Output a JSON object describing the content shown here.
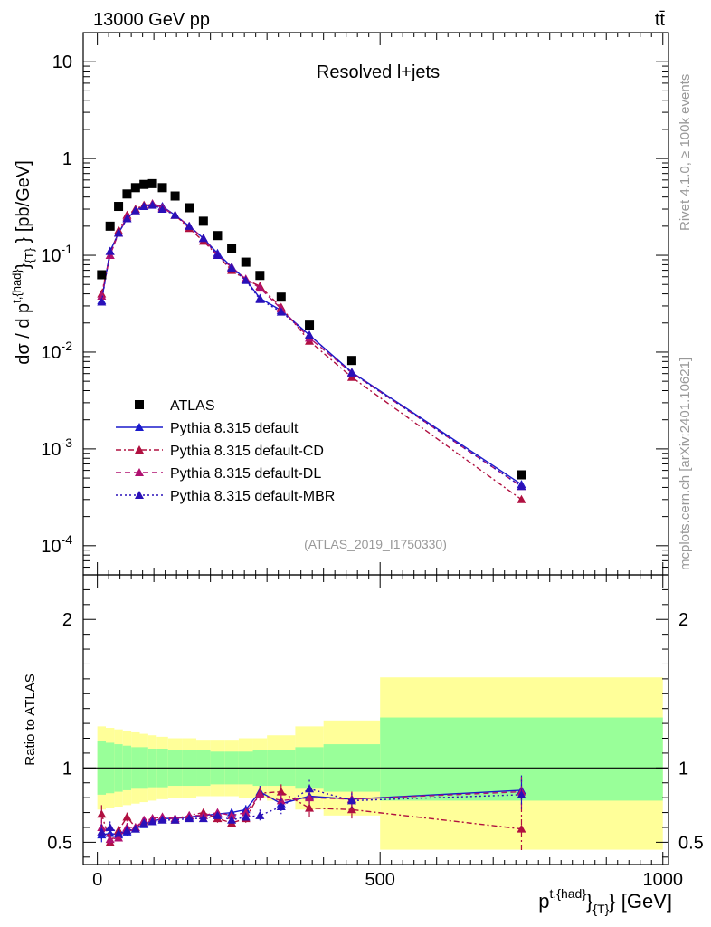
{
  "header": {
    "beam": "13000 GeV pp",
    "process": "tt̄",
    "title": "Resolved l+jets",
    "analysis": "(ATLAS_2019_I1750330)",
    "rivet": "Rivet 4.1.0, ≥ 100k events",
    "source": "mcplots.cern.ch [arXiv:2401.10621]"
  },
  "colors": {
    "atlas": "#000000",
    "default": "#1a1acc",
    "cd": "#b01040",
    "dl": "#b01070",
    "mbr": "#2a10b8",
    "band_stat": "#99ff99",
    "band_total": "#ffff99"
  },
  "chart_data": {
    "type": "scatter",
    "top": {
      "ylabel": "dσ / d p^{t,{had}}_{T} [pb/GeV]",
      "yscale": "log",
      "ylim": [
        5e-05,
        20
      ],
      "yticks": [
        {
          "v": 0.0001,
          "base": "10",
          "exp": "-4"
        },
        {
          "v": 0.001,
          "base": "10",
          "exp": "-3"
        },
        {
          "v": 0.01,
          "base": "10",
          "exp": "-2"
        },
        {
          "v": 0.1,
          "base": "10",
          "exp": "-1"
        },
        {
          "v": 1,
          "base": "1",
          "exp": ""
        },
        {
          "v": 10,
          "base": "10",
          "exp": ""
        }
      ]
    },
    "bottom": {
      "ylabel": "Ratio to ATLAS",
      "ylim": [
        0.35,
        2.3
      ],
      "ytick_labels": [
        "0.5",
        "1",
        "2"
      ],
      "yticks": [
        0.5,
        1,
        2
      ]
    },
    "xlabel": "p^{t,{had}}_{T} [GeV]",
    "xlim": [
      -25,
      1010
    ],
    "xtick_labels": [
      "0",
      "500",
      "1000"
    ],
    "xticks": [
      0,
      500,
      1000
    ],
    "bins": [
      [
        0,
        15
      ],
      [
        15,
        30
      ],
      [
        30,
        45
      ],
      [
        45,
        60
      ],
      [
        60,
        75
      ],
      [
        75,
        90
      ],
      [
        90,
        105
      ],
      [
        105,
        125
      ],
      [
        125,
        150
      ],
      [
        150,
        175
      ],
      [
        175,
        200
      ],
      [
        200,
        225
      ],
      [
        225,
        250
      ],
      [
        250,
        275
      ],
      [
        275,
        300
      ],
      [
        300,
        350
      ],
      [
        350,
        400
      ],
      [
        400,
        500
      ],
      [
        500,
        1000
      ]
    ],
    "x": [
      7.5,
      22.5,
      37.5,
      52.5,
      67.5,
      82.5,
      97.5,
      115,
      137.5,
      162.5,
      187.5,
      212.5,
      237.5,
      262.5,
      287.5,
      325,
      375,
      450,
      750
    ],
    "band_stat": [
      [
        0.82,
        1.18
      ],
      [
        0.83,
        1.17
      ],
      [
        0.84,
        1.16
      ],
      [
        0.85,
        1.15
      ],
      [
        0.86,
        1.14
      ],
      [
        0.86,
        1.14
      ],
      [
        0.87,
        1.13
      ],
      [
        0.87,
        1.13
      ],
      [
        0.88,
        1.12
      ],
      [
        0.88,
        1.12
      ],
      [
        0.88,
        1.12
      ],
      [
        0.89,
        1.11
      ],
      [
        0.89,
        1.11
      ],
      [
        0.89,
        1.11
      ],
      [
        0.88,
        1.12
      ],
      [
        0.88,
        1.12
      ],
      [
        0.86,
        1.14
      ],
      [
        0.84,
        1.16
      ],
      [
        0.78,
        1.34
      ]
    ],
    "band_total": [
      [
        0.72,
        1.28
      ],
      [
        0.73,
        1.27
      ],
      [
        0.74,
        1.26
      ],
      [
        0.75,
        1.25
      ],
      [
        0.76,
        1.24
      ],
      [
        0.77,
        1.23
      ],
      [
        0.78,
        1.22
      ],
      [
        0.79,
        1.21
      ],
      [
        0.8,
        1.2
      ],
      [
        0.8,
        1.2
      ],
      [
        0.81,
        1.19
      ],
      [
        0.81,
        1.19
      ],
      [
        0.81,
        1.19
      ],
      [
        0.8,
        1.2
      ],
      [
        0.8,
        1.2
      ],
      [
        0.78,
        1.22
      ],
      [
        0.72,
        1.28
      ],
      [
        0.68,
        1.32
      ],
      [
        0.45,
        1.61
      ]
    ],
    "atlas": [
      0.063,
      0.2,
      0.32,
      0.43,
      0.5,
      0.54,
      0.55,
      0.5,
      0.41,
      0.31,
      0.225,
      0.16,
      0.117,
      0.085,
      0.062,
      0.037,
      0.019,
      0.0082,
      0.00054
    ],
    "series": [
      {
        "name": "Pythia 8.315 default",
        "key": "default",
        "style": "solid",
        "values": [
          0.034,
          0.11,
          0.17,
          0.24,
          0.29,
          0.32,
          0.34,
          0.32,
          0.26,
          0.2,
          0.15,
          0.105,
          0.076,
          0.056,
          0.036,
          0.027,
          0.015,
          0.0062,
          0.00043
        ],
        "ratio": [
          0.55,
          0.56,
          0.55,
          0.57,
          0.59,
          0.62,
          0.64,
          0.66,
          0.66,
          0.67,
          0.68,
          0.69,
          0.7,
          0.72,
          0.84,
          0.76,
          0.81,
          0.79,
          0.85
        ],
        "ratio_err": [
          0.05,
          0.04,
          0.03,
          0.03,
          0.02,
          0.02,
          0.02,
          0.02,
          0.02,
          0.02,
          0.02,
          0.02,
          0.03,
          0.03,
          0.04,
          0.05,
          0.06,
          0.05,
          0.1
        ]
      },
      {
        "name": "Pythia 8.315 default-CD",
        "key": "cd",
        "style": "dashdot",
        "values": [
          0.04,
          0.1,
          0.18,
          0.26,
          0.3,
          0.33,
          0.34,
          0.31,
          0.26,
          0.19,
          0.14,
          0.1,
          0.07,
          0.056,
          0.048,
          0.029,
          0.013,
          0.0055,
          0.0003
        ],
        "ratio": [
          0.69,
          0.5,
          0.58,
          0.67,
          0.6,
          0.64,
          0.66,
          0.67,
          0.65,
          0.68,
          0.7,
          0.66,
          0.63,
          0.66,
          0.83,
          0.84,
          0.73,
          0.72,
          0.59
        ],
        "ratio_err": [
          0.06,
          0.04,
          0.03,
          0.03,
          0.02,
          0.02,
          0.02,
          0.02,
          0.02,
          0.02,
          0.02,
          0.03,
          0.03,
          0.03,
          0.04,
          0.05,
          0.06,
          0.06,
          0.15
        ]
      },
      {
        "name": "Pythia 8.315 default-DL",
        "key": "dl",
        "style": "dashed",
        "values": [
          0.038,
          0.1,
          0.17,
          0.25,
          0.29,
          0.32,
          0.34,
          0.31,
          0.26,
          0.2,
          0.15,
          0.1,
          0.075,
          0.057,
          0.046,
          0.028,
          0.014,
          0.0061,
          0.00041
        ],
        "ratio": [
          0.6,
          0.52,
          0.53,
          0.6,
          0.6,
          0.65,
          0.66,
          0.67,
          0.66,
          0.68,
          0.68,
          0.7,
          0.68,
          0.7,
          0.82,
          0.78,
          0.8,
          0.79,
          0.84
        ],
        "ratio_err": [
          0.05,
          0.04,
          0.03,
          0.03,
          0.02,
          0.02,
          0.02,
          0.02,
          0.02,
          0.02,
          0.02,
          0.02,
          0.03,
          0.03,
          0.04,
          0.05,
          0.06,
          0.05,
          0.1
        ]
      },
      {
        "name": "Pythia 8.315 default-MBR",
        "key": "mbr",
        "style": "dotted",
        "values": [
          0.033,
          0.11,
          0.17,
          0.24,
          0.29,
          0.32,
          0.33,
          0.3,
          0.26,
          0.2,
          0.15,
          0.1,
          0.074,
          0.055,
          0.035,
          0.026,
          0.015,
          0.0061,
          0.00041
        ],
        "ratio": [
          0.57,
          0.6,
          0.56,
          0.58,
          0.59,
          0.63,
          0.64,
          0.65,
          0.65,
          0.66,
          0.66,
          0.68,
          0.65,
          0.67,
          0.68,
          0.74,
          0.86,
          0.78,
          0.82
        ],
        "ratio_err": [
          0.05,
          0.04,
          0.03,
          0.03,
          0.02,
          0.02,
          0.02,
          0.02,
          0.02,
          0.02,
          0.02,
          0.02,
          0.03,
          0.03,
          0.04,
          0.05,
          0.06,
          0.05,
          0.1
        ]
      }
    ],
    "legend_atlas": "ATLAS",
    "legend_position": "lower-left"
  }
}
